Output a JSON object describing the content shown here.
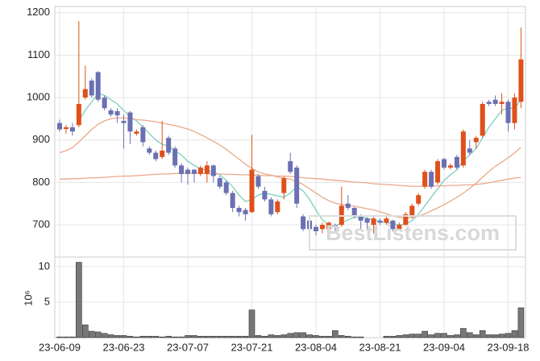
{
  "watermark": "BestListens.com",
  "chart_data": [
    {
      "type": "candlestick",
      "categories": [
        "23-06-09",
        null,
        null,
        null,
        null,
        null,
        null,
        null,
        null,
        null,
        "23-06-23",
        null,
        null,
        null,
        null,
        null,
        null,
        null,
        null,
        null,
        "23-07-07",
        null,
        null,
        null,
        null,
        null,
        null,
        null,
        null,
        null,
        "23-07-21",
        null,
        null,
        null,
        null,
        null,
        null,
        null,
        null,
        null,
        "23-08-04",
        null,
        null,
        null,
        null,
        null,
        null,
        null,
        null,
        null,
        "23-08-21",
        null,
        null,
        null,
        null,
        null,
        null,
        null,
        null,
        null,
        "23-09-04",
        null,
        null,
        null,
        null,
        null,
        null,
        null,
        null,
        null,
        "23-09-18",
        null,
        null
      ],
      "open": [
        940,
        926,
        930,
        935,
        1000,
        1040,
        1060,
        1000,
        970,
        968,
        945,
        965,
        915,
        930,
        880,
        870,
        860,
        905,
        880,
        840,
        830,
        830,
        820,
        820,
        840,
        810,
        800,
        775,
        740,
        735,
        730,
        815,
        780,
        760,
        730,
        775,
        850,
        835,
        720,
        710,
        695,
        690,
        690,
        700,
        700,
        750,
        740,
        720,
        715,
        700,
        710,
        705,
        710,
        690,
        700,
        720,
        750,
        790,
        825,
        800,
        855,
        835,
        860,
        840,
        880,
        895,
        910,
        990,
        995,
        985,
        990,
        940,
        990
      ],
      "high": [
        948,
        935,
        940,
        1180,
        1075,
        1045,
        1062,
        1005,
        975,
        975,
        960,
        968,
        925,
        935,
        885,
        875,
        945,
        910,
        885,
        845,
        835,
        832,
        840,
        850,
        842,
        815,
        805,
        780,
        745,
        740,
        912,
        820,
        790,
        765,
        760,
        815,
        870,
        840,
        725,
        712,
        700,
        705,
        708,
        703,
        790,
        770,
        742,
        725,
        718,
        720,
        715,
        720,
        712,
        705,
        730,
        750,
        775,
        830,
        830,
        855,
        858,
        845,
        865,
        925,
        900,
        910,
        990,
        995,
        1005,
        1010,
        995,
        1010,
        1165
      ],
      "low": [
        920,
        915,
        910,
        930,
        995,
        1000,
        990,
        970,
        955,
        940,
        880,
        890,
        910,
        885,
        865,
        850,
        855,
        865,
        835,
        800,
        795,
        800,
        815,
        800,
        800,
        785,
        770,
        730,
        720,
        710,
        728,
        785,
        755,
        720,
        725,
        760,
        820,
        740,
        685,
        680,
        675,
        680,
        685,
        685,
        695,
        735,
        715,
        690,
        690,
        680,
        700,
        700,
        685,
        688,
        698,
        715,
        745,
        785,
        785,
        795,
        830,
        830,
        830,
        835,
        865,
        880,
        905,
        980,
        980,
        960,
        920,
        925,
        975
      ],
      "close": [
        925,
        930,
        920,
        985,
        1020,
        1005,
        995,
        975,
        960,
        958,
        940,
        920,
        920,
        895,
        870,
        855,
        875,
        870,
        840,
        820,
        820,
        820,
        835,
        840,
        815,
        790,
        775,
        740,
        730,
        725,
        830,
        790,
        760,
        725,
        755,
        810,
        825,
        750,
        690,
        690,
        685,
        700,
        705,
        695,
        745,
        740,
        720,
        710,
        705,
        715,
        705,
        715,
        690,
        700,
        725,
        745,
        770,
        825,
        790,
        850,
        835,
        840,
        835,
        920,
        870,
        905,
        985,
        985,
        985,
        990,
        940,
        1000,
        1090
      ],
      "up_color": "#e0501a",
      "down_color": "#6b70b2",
      "series": [
        {
          "color": "#7ccfc0",
          "values": [
            null,
            null,
            null,
            945,
            970,
            990,
            1010,
            1005,
            995,
            985,
            970,
            955,
            945,
            930,
            915,
            900,
            890,
            885,
            875,
            865,
            850,
            840,
            832,
            828,
            825,
            818,
            805,
            790,
            770,
            755,
            760,
            770,
            775,
            772,
            768,
            765,
            775,
            790,
            780,
            760,
            735,
            712,
            700,
            697,
            705,
            712,
            718,
            720,
            715,
            712,
            708,
            705,
            703,
            700,
            702,
            710,
            725,
            745,
            765,
            785,
            805,
            818,
            830,
            850,
            865,
            880,
            905,
            930,
            950,
            970,
            975,
            975,
            995
          ]
        },
        {
          "color": "#eaa98a",
          "values": [
            870,
            875,
            882,
            895,
            910,
            925,
            937,
            945,
            950,
            952,
            952,
            950,
            948,
            947,
            945,
            943,
            940,
            937,
            934,
            930,
            926,
            920,
            913,
            905,
            897,
            888,
            878,
            866,
            855,
            843,
            833,
            825,
            820,
            817,
            813,
            810,
            808,
            802,
            795,
            785,
            775,
            765,
            757,
            751,
            748,
            746,
            744,
            741,
            738,
            735,
            731,
            726,
            721,
            718,
            716,
            717,
            720,
            726,
            733,
            740,
            748,
            756,
            765,
            775,
            786,
            798,
            812,
            826,
            838,
            848,
            858,
            870,
            883
          ]
        },
        {
          "color": "#eaa98a",
          "values": [
            808,
            808,
            809,
            809,
            810,
            811,
            811,
            812,
            813,
            814,
            815,
            815,
            816,
            817,
            818,
            819,
            820,
            820,
            821,
            821,
            822,
            822,
            821,
            821,
            820,
            820,
            819,
            819,
            818,
            818,
            817,
            817,
            816,
            816,
            815,
            815,
            814,
            813,
            811,
            810,
            809,
            808,
            806,
            805,
            804,
            802,
            801,
            800,
            799,
            797,
            796,
            795,
            794,
            793,
            792,
            791,
            791,
            791,
            791,
            792,
            792,
            793,
            793,
            794,
            794,
            795,
            797,
            799,
            802,
            805,
            808,
            810,
            812
          ]
        }
      ],
      "ylim": [
        626,
        1211
      ],
      "yticks": [
        700,
        800,
        900,
        1000,
        1100,
        1200
      ],
      "grid": true
    },
    {
      "type": "bar",
      "ylabel": "10⁶",
      "color": "#777777",
      "values": [
        0.1,
        0.1,
        0.1,
        10.6,
        1.8,
        0.9,
        0.8,
        0.6,
        0.4,
        0.3,
        0.3,
        0.2,
        0.1,
        0.2,
        0.2,
        0.2,
        0.1,
        0.2,
        0.1,
        0.1,
        0.3,
        0.3,
        0.2,
        0.2,
        0.2,
        0.2,
        0.2,
        0.2,
        0.2,
        0.2,
        3.9,
        0.3,
        0.2,
        0.4,
        0.3,
        0.4,
        0.6,
        0.7,
        0.7,
        0.4,
        0.3,
        0.2,
        0.2,
        1.0,
        0.3,
        0.2,
        0.1,
        0.1,
        0,
        0,
        0,
        0.2,
        0.2,
        0.3,
        0.4,
        0.5,
        0.5,
        0.9,
        0.4,
        0.6,
        0.6,
        0.3,
        0.4,
        1.3,
        0.7,
        0.4,
        1.0,
        0.4,
        0.4,
        0.5,
        0.6,
        1.0,
        4.2
      ],
      "ylim": [
        0,
        11
      ],
      "yticks": [
        5,
        10
      ],
      "grid": true
    }
  ]
}
